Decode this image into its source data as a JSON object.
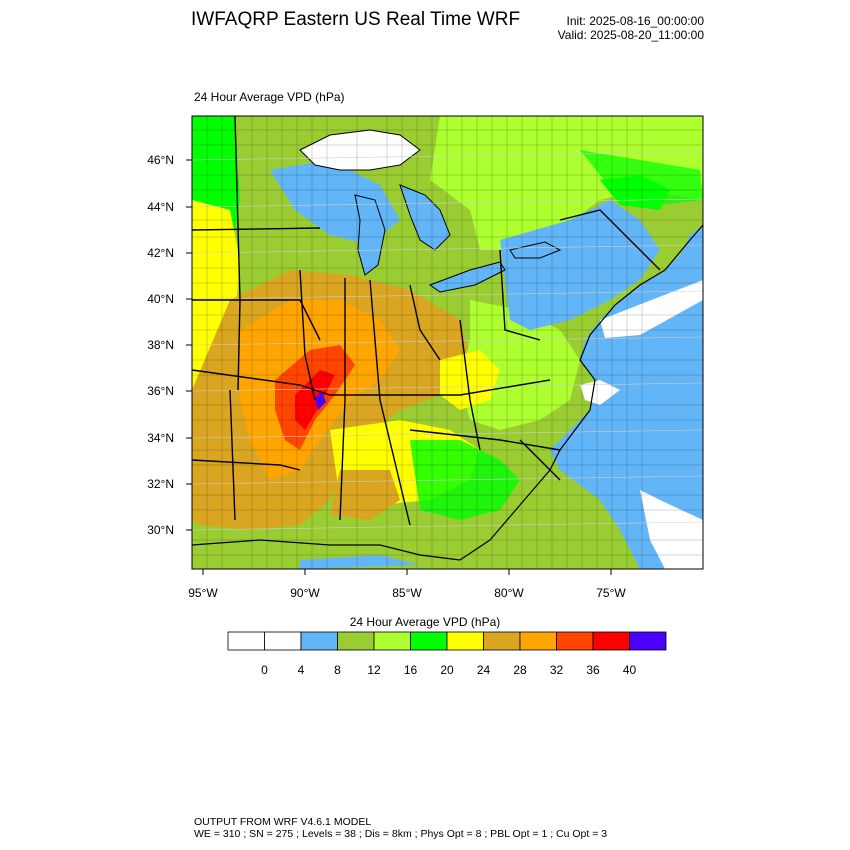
{
  "header": {
    "title": "IWFAQRP Eastern US Real Time WRF",
    "init": "Init: 2025-08-16_00:00:00",
    "valid": "Valid: 2025-08-20_11:00:00"
  },
  "map": {
    "subtitle": "24 Hour Average VPD   (hPa)",
    "lat_labels": [
      "46°N",
      "44°N",
      "42°N",
      "40°N",
      "38°N",
      "36°N",
      "34°N",
      "32°N",
      "30°N"
    ],
    "lon_labels": [
      "95°W",
      "90°W",
      "85°W",
      "80°W",
      "75°W"
    ],
    "regions": {
      "ocean": "#62b5f7",
      "lakes": "#ffffff",
      "land_base": "#9acd32"
    }
  },
  "colorbar": {
    "title": "24 Hour Average VPD  (hPa)",
    "ticks": [
      "0",
      "4",
      "8",
      "12",
      "16",
      "20",
      "24",
      "28",
      "32",
      "36",
      "40"
    ],
    "colors": [
      "#ffffff",
      "#ffffff",
      "#62b5f7",
      "#9acd32",
      "#adff2f",
      "#00ff00",
      "#ffff00",
      "#daa520",
      "#ffa500",
      "#ff4500",
      "#ff0000",
      "#4b00ff"
    ]
  },
  "footer": {
    "line1": "OUTPUT FROM WRF V4.6.1 MODEL",
    "line2": "WE = 310 ; SN = 275 ; Levels = 38 ; Dis = 8km ; Phys Opt = 8 ; PBL Opt = 1 ; Cu Opt = 3"
  }
}
